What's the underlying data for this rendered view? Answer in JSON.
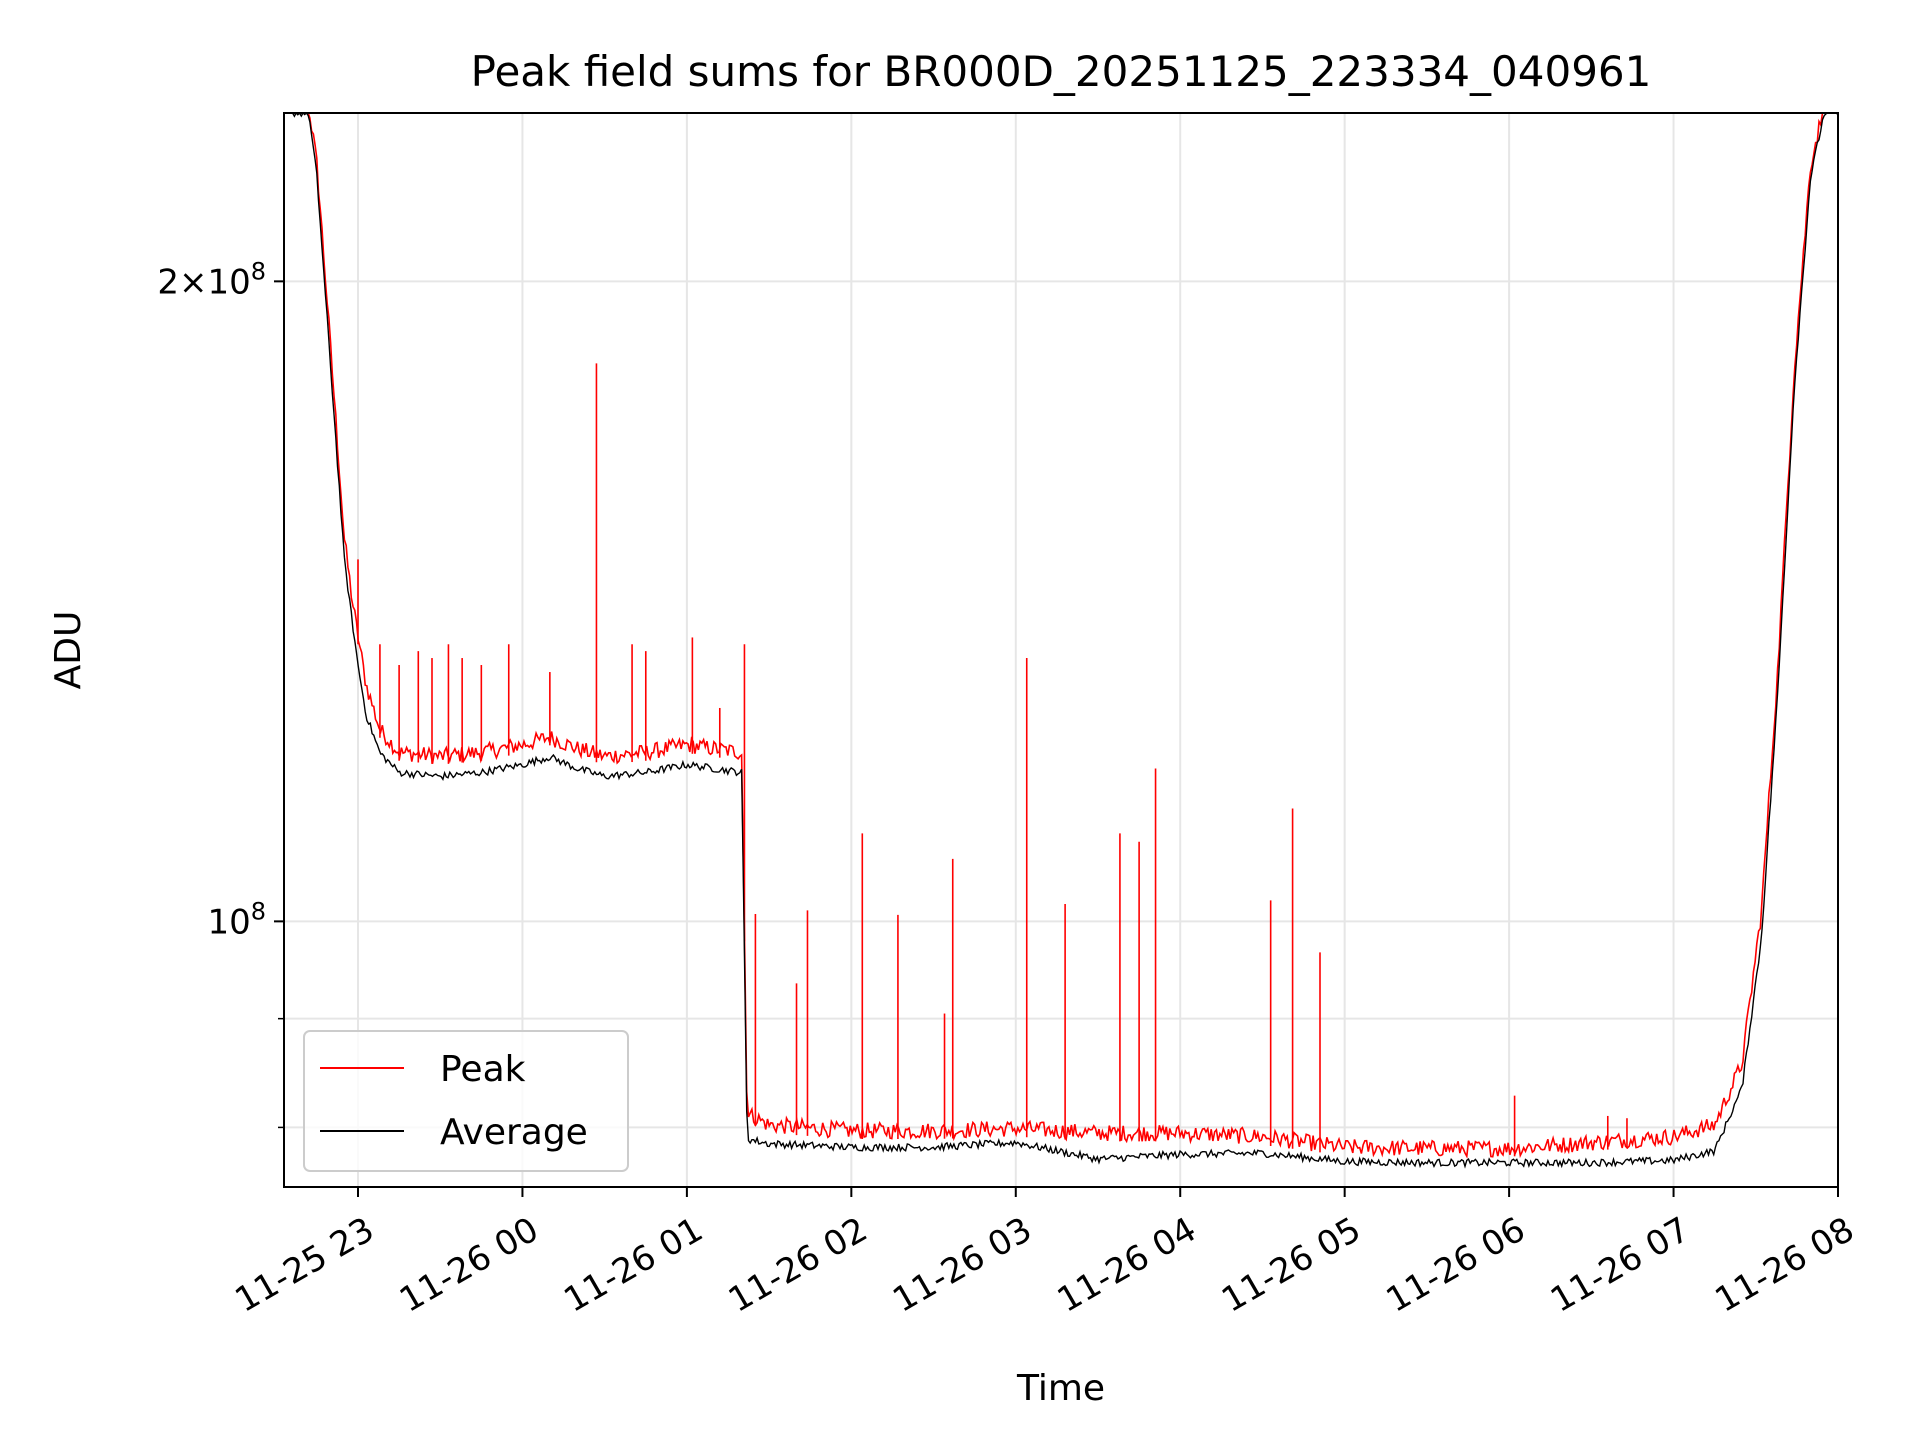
{
  "chart_data": {
    "type": "line",
    "title": "Peak field sums for BR000D_20251125_223334_040961",
    "xlabel": "Time",
    "ylabel": "ADU",
    "y_scale": "log",
    "ylim": [
      75000000,
      240000000
    ],
    "xlim": [
      "2025-11-25 22:33",
      "2025-11-26 08:00"
    ],
    "grid": true,
    "legend_position": "lower-left",
    "colors": {
      "peak": "#ff0000",
      "average": "#000000",
      "grid": "#e6e6e6"
    },
    "x_tick_labels": [
      "11-25 23",
      "11-26 00",
      "11-26 01",
      "11-26 02",
      "11-26 03",
      "11-26 04",
      "11-26 05",
      "11-26 06",
      "11-26 07",
      "11-26 08"
    ],
    "x_ticks": [
      "2025-11-25 23:00",
      "2025-11-26 00:00",
      "2025-11-26 01:00",
      "2025-11-26 02:00",
      "2025-11-26 03:00",
      "2025-11-26 04:00",
      "2025-11-26 05:00",
      "2025-11-26 06:00",
      "2025-11-26 07:00",
      "2025-11-26 08:00"
    ],
    "y_major_ticks": [
      {
        "value": 100000000,
        "base": "10",
        "exp": "8"
      },
      {
        "value": 200000000,
        "coef": "2",
        "base": "10",
        "exp": "8"
      }
    ],
    "y_minor_ticks": [
      80000000,
      90000000
    ],
    "series": [
      {
        "name": "Peak",
        "color": "#ff0000",
        "points": [
          [
            "2025-11-25 22:33",
            240000000
          ],
          [
            "2025-11-25 22:42",
            240000000
          ],
          [
            "2025-11-25 22:45",
            225000000
          ],
          [
            "2025-11-25 22:48",
            200000000
          ],
          [
            "2025-11-25 22:52",
            170000000
          ],
          [
            "2025-11-25 22:55",
            150000000
          ],
          [
            "2025-11-25 22:58",
            140000000
          ],
          [
            "2025-11-25 23:00",
            135000000
          ],
          [
            "2025-11-25 23:03",
            128000000
          ],
          [
            "2025-11-25 23:08",
            122000000
          ],
          [
            "2025-11-25 23:15",
            119000000
          ],
          [
            "2025-11-25 23:30",
            118500000
          ],
          [
            "2025-11-25 23:45",
            119000000
          ],
          [
            "2025-11-26 00:00",
            120000000
          ],
          [
            "2025-11-26 00:10",
            121000000
          ],
          [
            "2025-11-26 00:20",
            119500000
          ],
          [
            "2025-11-26 00:30",
            118500000
          ],
          [
            "2025-11-26 00:45",
            119000000
          ],
          [
            "2025-11-26 01:00",
            120000000
          ],
          [
            "2025-11-26 01:10",
            119500000
          ],
          [
            "2025-11-26 01:20",
            119000000
          ],
          [
            "2025-11-26 01:22",
            80500000
          ],
          [
            "2025-11-26 01:30",
            79500000
          ],
          [
            "2025-11-26 02:00",
            79000000
          ],
          [
            "2025-11-26 02:30",
            79000000
          ],
          [
            "2025-11-26 03:00",
            79200000
          ],
          [
            "2025-11-26 03:30",
            78800000
          ],
          [
            "2025-11-26 04:00",
            78800000
          ],
          [
            "2025-11-26 04:30",
            78500000
          ],
          [
            "2025-11-26 05:00",
            77600000
          ],
          [
            "2025-11-26 05:30",
            77500000
          ],
          [
            "2025-11-26 06:00",
            77500000
          ],
          [
            "2025-11-26 06:30",
            78000000
          ],
          [
            "2025-11-26 07:00",
            78500000
          ],
          [
            "2025-11-26 07:15",
            79500000
          ],
          [
            "2025-11-26 07:25",
            85000000
          ],
          [
            "2025-11-26 07:32",
            100000000
          ],
          [
            "2025-11-26 07:38",
            130000000
          ],
          [
            "2025-11-26 07:44",
            180000000
          ],
          [
            "2025-11-26 07:50",
            225000000
          ],
          [
            "2025-11-26 07:55",
            240000000
          ],
          [
            "2025-11-26 08:00",
            240000000
          ]
        ],
        "spikes": [
          [
            "2025-11-25 22:55",
            150000000
          ],
          [
            "2025-11-25 23:00",
            148000000
          ],
          [
            "2025-11-25 23:08",
            135000000
          ],
          [
            "2025-11-25 23:15",
            132000000
          ],
          [
            "2025-11-25 23:22",
            134000000
          ],
          [
            "2025-11-25 23:27",
            133000000
          ],
          [
            "2025-11-25 23:33",
            135000000
          ],
          [
            "2025-11-25 23:38",
            133000000
          ],
          [
            "2025-11-25 23:45",
            132000000
          ],
          [
            "2025-11-25 23:55",
            135000000
          ],
          [
            "2025-11-26 00:10",
            131000000
          ],
          [
            "2025-11-26 00:27",
            183000000
          ],
          [
            "2025-11-26 00:40",
            135000000
          ],
          [
            "2025-11-26 00:45",
            134000000
          ],
          [
            "2025-11-26 01:02",
            136000000
          ],
          [
            "2025-11-26 01:12",
            126000000
          ],
          [
            "2025-11-26 01:21",
            135000000
          ],
          [
            "2025-11-26 01:25",
            100800000
          ],
          [
            "2025-11-26 01:40",
            93500000
          ],
          [
            "2025-11-26 01:44",
            101200000
          ],
          [
            "2025-11-26 02:04",
            110000000
          ],
          [
            "2025-11-26 02:17",
            100700000
          ],
          [
            "2025-11-26 02:34",
            90500000
          ],
          [
            "2025-11-26 02:37",
            107000000
          ],
          [
            "2025-11-26 03:04",
            133000000
          ],
          [
            "2025-11-26 03:18",
            101900000
          ],
          [
            "2025-11-26 03:38",
            110000000
          ],
          [
            "2025-11-26 03:45",
            109000000
          ],
          [
            "2025-11-26 03:51",
            118000000
          ],
          [
            "2025-11-26 04:33",
            102300000
          ],
          [
            "2025-11-26 04:41",
            113000000
          ],
          [
            "2025-11-26 04:51",
            96700000
          ],
          [
            "2025-11-26 06:02",
            82800000
          ],
          [
            "2025-11-26 06:36",
            81000000
          ],
          [
            "2025-11-26 06:43",
            80800000
          ]
        ]
      },
      {
        "name": "Average",
        "color": "#000000",
        "points": [
          [
            "2025-11-25 22:33",
            240000000
          ],
          [
            "2025-11-25 22:42",
            240000000
          ],
          [
            "2025-11-25 22:45",
            224000000
          ],
          [
            "2025-11-25 22:48",
            198000000
          ],
          [
            "2025-11-25 22:52",
            168000000
          ],
          [
            "2025-11-25 22:55",
            148000000
          ],
          [
            "2025-11-25 22:58",
            138000000
          ],
          [
            "2025-11-25 23:00",
            132000000
          ],
          [
            "2025-11-25 23:03",
            125000000
          ],
          [
            "2025-11-25 23:08",
            120000000
          ],
          [
            "2025-11-25 23:15",
            117500000
          ],
          [
            "2025-11-25 23:30",
            117000000
          ],
          [
            "2025-11-25 23:45",
            117500000
          ],
          [
            "2025-11-26 00:00",
            118500000
          ],
          [
            "2025-11-26 00:10",
            119500000
          ],
          [
            "2025-11-26 00:20",
            118000000
          ],
          [
            "2025-11-26 00:30",
            117000000
          ],
          [
            "2025-11-26 00:45",
            117500000
          ],
          [
            "2025-11-26 01:00",
            118500000
          ],
          [
            "2025-11-26 01:10",
            118000000
          ],
          [
            "2025-11-26 01:20",
            117500000
          ],
          [
            "2025-11-26 01:22",
            79000000
          ],
          [
            "2025-11-26 01:30",
            78600000
          ],
          [
            "2025-11-26 02:00",
            78300000
          ],
          [
            "2025-11-26 02:30",
            78300000
          ],
          [
            "2025-11-26 03:00",
            78700000
          ],
          [
            "2025-11-26 03:30",
            77300000
          ],
          [
            "2025-11-26 04:00",
            77700000
          ],
          [
            "2025-11-26 04:30",
            77800000
          ],
          [
            "2025-11-26 05:00",
            77100000
          ],
          [
            "2025-11-26 05:30",
            77000000
          ],
          [
            "2025-11-26 06:00",
            77000000
          ],
          [
            "2025-11-26 06:30",
            77000000
          ],
          [
            "2025-11-26 07:00",
            77200000
          ],
          [
            "2025-11-26 07:15",
            78000000
          ],
          [
            "2025-11-26 07:25",
            83500000
          ],
          [
            "2025-11-26 07:32",
            98000000
          ],
          [
            "2025-11-26 07:38",
            128000000
          ],
          [
            "2025-11-26 07:44",
            178000000
          ],
          [
            "2025-11-26 07:50",
            224000000
          ],
          [
            "2025-11-26 07:55",
            240000000
          ],
          [
            "2025-11-26 08:00",
            240000000
          ]
        ]
      }
    ]
  }
}
